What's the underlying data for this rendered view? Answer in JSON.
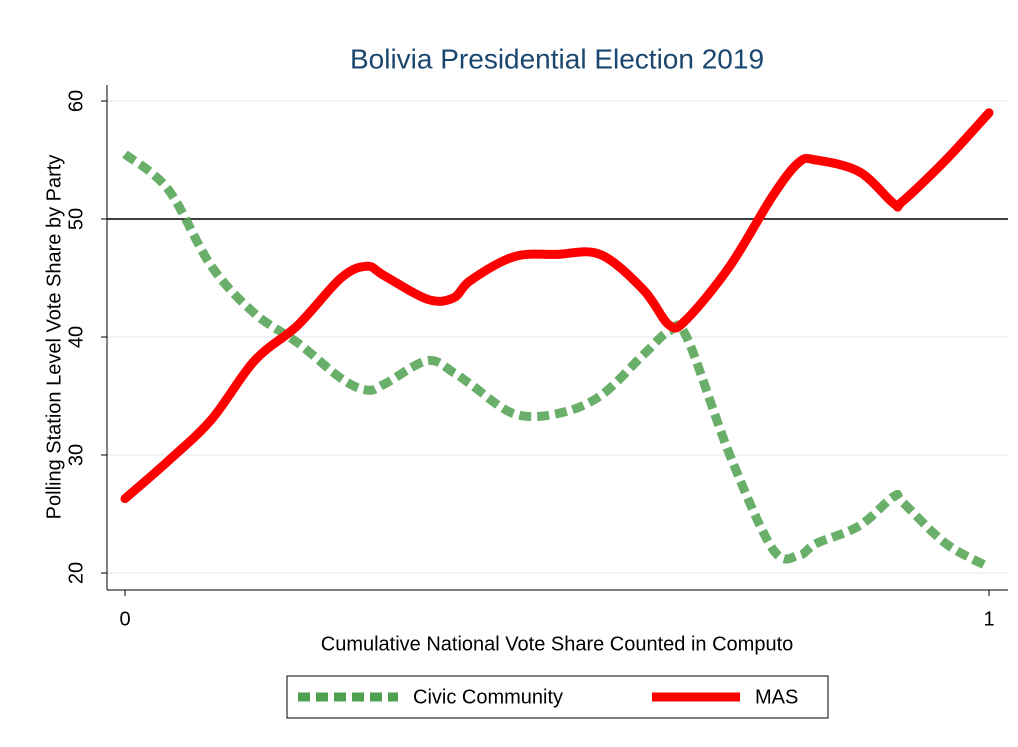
{
  "chart_data": {
    "type": "line",
    "title": "Bolivia Presidential Election 2019",
    "x_label": "Cumulative National Vote Share Counted in Computo",
    "y_label": "Polling Station Level Vote Share by Party",
    "x": [
      0,
      0.05,
      0.1,
      0.15,
      0.2,
      0.25,
      0.28,
      0.3,
      0.35,
      0.38,
      0.4,
      0.45,
      0.5,
      0.55,
      0.6,
      0.63,
      0.65,
      0.7,
      0.75,
      0.78,
      0.8,
      0.85,
      0.89,
      0.9,
      0.95,
      1
    ],
    "series": [
      {
        "name": "Civic Community",
        "color": "#4fa14f",
        "dashed": true,
        "values": [
          55.5,
          52.5,
          46,
          42,
          39.5,
          36.5,
          35.5,
          36,
          38,
          37,
          36,
          33.5,
          33.5,
          35,
          38.5,
          40.5,
          40,
          30,
          22,
          21.5,
          22.5,
          24,
          26.5,
          26,
          22.5,
          20.5
        ]
      },
      {
        "name": "MAS",
        "color": "#ff0000",
        "dashed": false,
        "values": [
          26.3,
          29.5,
          33,
          38,
          41,
          45,
          46,
          45.2,
          43.2,
          43.3,
          44.8,
          46.8,
          47,
          47,
          44,
          41,
          41.5,
          46,
          52,
          54.8,
          55,
          54,
          51.3,
          51.5,
          55,
          59
        ]
      }
    ],
    "reference_line": 50,
    "xlim": [
      0,
      1
    ],
    "xticks": [
      0,
      1
    ],
    "ylim": [
      20,
      60
    ],
    "yticks": [
      20,
      30,
      40,
      50,
      60
    ],
    "grid": true
  }
}
